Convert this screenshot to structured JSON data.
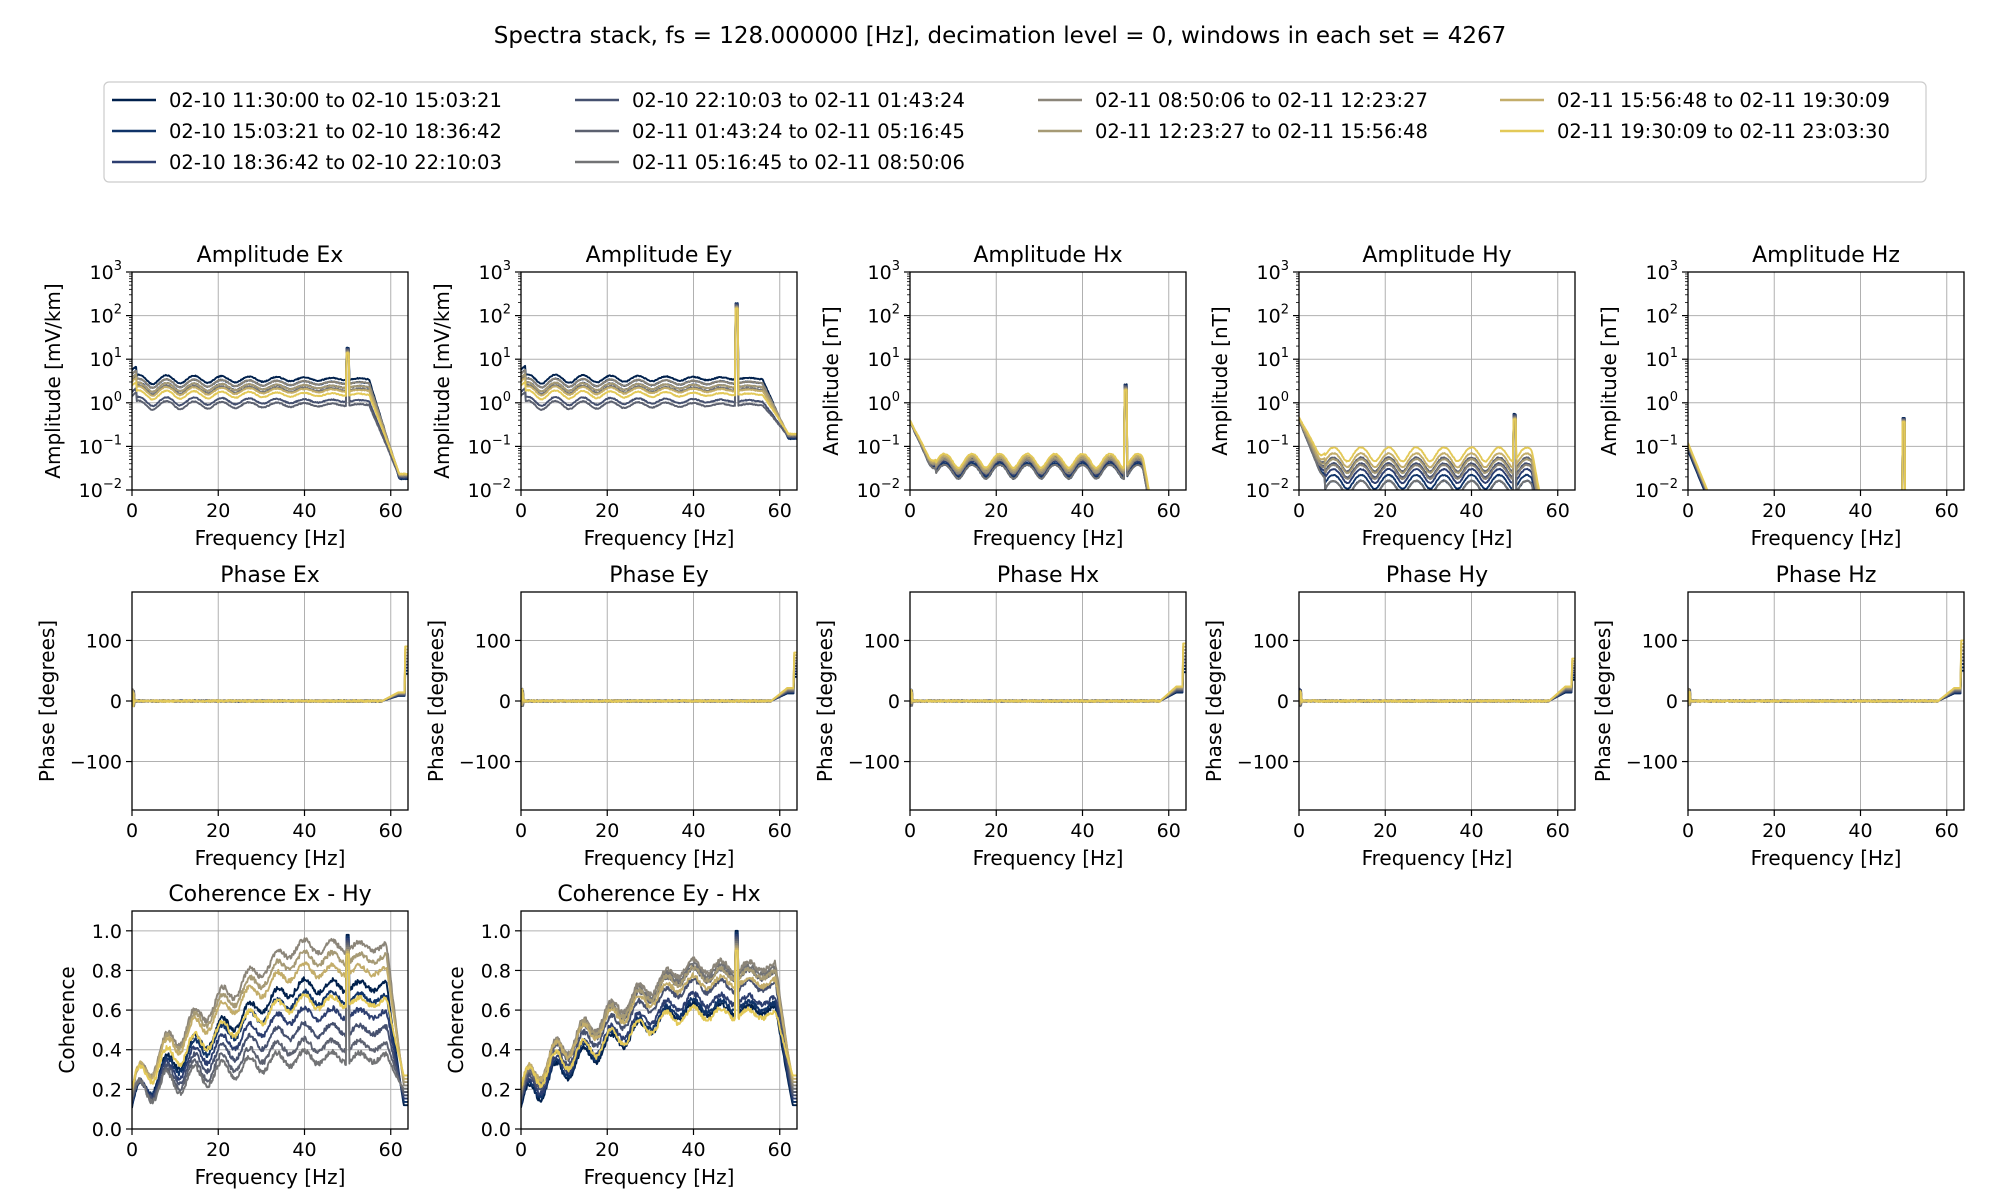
{
  "figure": {
    "title": "Spectra stack, fs = 128.000000 [Hz], decimation level =  0, windows in each set = 4267"
  },
  "legend": {
    "placement": "top, 4 columns",
    "entries": [
      {
        "label": "02-10 11:30:00 to 02-10 15:03:21",
        "color": "#00204c"
      },
      {
        "label": "02-10 15:03:21 to 02-10 18:36:42",
        "color": "#0f3368"
      },
      {
        "label": "02-10 18:36:42 to 02-10 22:10:03",
        "color": "#2c3e70"
      },
      {
        "label": "02-10 22:10:03 to 02-11 01:43:24",
        "color": "#45506f"
      },
      {
        "label": "02-11 01:43:24 to 02-11 05:16:45",
        "color": "#5c6170"
      },
      {
        "label": "02-11 05:16:45 to 02-11 08:50:06",
        "color": "#727375"
      },
      {
        "label": "02-11 08:50:06 to 02-11 12:23:27",
        "color": "#8b8579"
      },
      {
        "label": "02-11 12:23:27 to 02-11 15:56:48",
        "color": "#a69a75"
      },
      {
        "label": "02-11 15:56:48 to 02-11 19:30:09",
        "color": "#c3ad6a"
      },
      {
        "label": "02-11 19:30:09 to 02-11 23:03:30",
        "color": "#e3c958"
      }
    ]
  },
  "chart_data": [
    {
      "id": "amp_ex",
      "type": "line",
      "title": "Amplitude Ex",
      "xlabel": "Frequency [Hz]",
      "ylabel": "Amplitude [mV/km]",
      "xlim": [
        0,
        64
      ],
      "ylim": [
        0.01,
        1000
      ],
      "yscale": "log",
      "grid": true,
      "xticks": [
        0,
        20,
        40,
        60
      ],
      "yticks": [
        {
          "v": 0.01,
          "base": "10",
          "exp": "−2"
        },
        {
          "v": 0.1,
          "base": "10",
          "exp": "−1"
        },
        {
          "v": 1,
          "base": "10",
          "exp": "0"
        },
        {
          "v": 10,
          "base": "10",
          "exp": "1"
        },
        {
          "v": 100,
          "base": "10",
          "exp": "2"
        },
        {
          "v": 1000,
          "base": "10",
          "exp": "3"
        }
      ],
      "model": {
        "kind": "amp_e",
        "lo": 0.9,
        "hi": 3.5,
        "dropHz": 55,
        "floor": 0.018,
        "peakHz": 50,
        "peak": 18
      }
    },
    {
      "id": "amp_ey",
      "type": "line",
      "title": "Amplitude Ey",
      "xlabel": "Frequency [Hz]",
      "ylabel": "Amplitude [mV/km]",
      "xlim": [
        0,
        64
      ],
      "ylim": [
        0.01,
        1000
      ],
      "yscale": "log",
      "grid": true,
      "xticks": [
        0,
        20,
        40,
        60
      ],
      "yticks": [
        {
          "v": 0.01,
          "base": "10",
          "exp": "−2"
        },
        {
          "v": 0.1,
          "base": "10",
          "exp": "−1"
        },
        {
          "v": 1,
          "base": "10",
          "exp": "0"
        },
        {
          "v": 10,
          "base": "10",
          "exp": "1"
        },
        {
          "v": 100,
          "base": "10",
          "exp": "2"
        },
        {
          "v": 1000,
          "base": "10",
          "exp": "3"
        }
      ],
      "model": {
        "kind": "amp_e",
        "lo": 0.9,
        "hi": 3.6,
        "dropHz": 56,
        "floor": 0.15,
        "peakHz": 50,
        "peak": 190
      }
    },
    {
      "id": "amp_hx",
      "type": "line",
      "title": "Amplitude Hx",
      "xlabel": "Frequency [Hz]",
      "ylabel": "Amplitude [nT]",
      "xlim": [
        0,
        64
      ],
      "ylim": [
        0.01,
        1000
      ],
      "yscale": "log",
      "grid": true,
      "xticks": [
        0,
        20,
        40,
        60
      ],
      "yticks": [
        {
          "v": 0.01,
          "base": "10",
          "exp": "−2"
        },
        {
          "v": 0.1,
          "base": "10",
          "exp": "−1"
        },
        {
          "v": 1,
          "base": "10",
          "exp": "0"
        },
        {
          "v": 10,
          "base": "10",
          "exp": "1"
        },
        {
          "v": 100,
          "base": "10",
          "exp": "2"
        },
        {
          "v": 1000,
          "base": "10",
          "exp": "3"
        }
      ],
      "model": {
        "kind": "amp_h",
        "start": 0.35,
        "lo": 0.028,
        "hi": 0.05,
        "endHz": 58,
        "peakHz": 50,
        "peak": 2.6
      }
    },
    {
      "id": "amp_hy",
      "type": "line",
      "title": "Amplitude Hy",
      "xlabel": "Frequency [Hz]",
      "ylabel": "Amplitude [nT]",
      "xlim": [
        0,
        64
      ],
      "ylim": [
        0.01,
        1000
      ],
      "yscale": "log",
      "grid": true,
      "xticks": [
        0,
        20,
        40,
        60
      ],
      "yticks": [
        {
          "v": 0.01,
          "base": "10",
          "exp": "−2"
        },
        {
          "v": 0.1,
          "base": "10",
          "exp": "−1"
        },
        {
          "v": 1,
          "base": "10",
          "exp": "0"
        },
        {
          "v": 10,
          "base": "10",
          "exp": "1"
        },
        {
          "v": 100,
          "base": "10",
          "exp": "2"
        },
        {
          "v": 1000,
          "base": "10",
          "exp": "3"
        }
      ],
      "model": {
        "kind": "amp_h",
        "start": 0.4,
        "lo": 0.012,
        "hi": 0.07,
        "endHz": 58,
        "peakHz": 50,
        "peak": 0.55
      }
    },
    {
      "id": "amp_hz",
      "type": "line",
      "title": "Amplitude Hz",
      "xlabel": "Frequency [Hz]",
      "ylabel": "Amplitude [nT]",
      "xlim": [
        0,
        64
      ],
      "ylim": [
        0.01,
        1000
      ],
      "yscale": "log",
      "grid": true,
      "xticks": [
        0,
        20,
        40,
        60
      ],
      "yticks": [
        {
          "v": 0.01,
          "base": "10",
          "exp": "−2"
        },
        {
          "v": 0.1,
          "base": "10",
          "exp": "−1"
        },
        {
          "v": 1,
          "base": "10",
          "exp": "0"
        },
        {
          "v": 10,
          "base": "10",
          "exp": "1"
        },
        {
          "v": 100,
          "base": "10",
          "exp": "2"
        },
        {
          "v": 1000,
          "base": "10",
          "exp": "3"
        }
      ],
      "model": {
        "kind": "amp_hz",
        "start": 0.1,
        "peakHz": 50,
        "peak": 0.45
      }
    },
    {
      "id": "ph_ex",
      "type": "line",
      "title": "Phase Ex",
      "xlabel": "Frequency [Hz]",
      "ylabel": "Phase [degrees]",
      "xlim": [
        0,
        64
      ],
      "ylim": [
        -180,
        180
      ],
      "yscale": "linear",
      "grid": true,
      "xticks": [
        0,
        20,
        40,
        60
      ],
      "yticks": [
        {
          "v": 100,
          "label": "100"
        },
        {
          "v": 0,
          "label": "0"
        },
        {
          "v": -100,
          "label": "−100"
        }
      ],
      "model": {
        "kind": "phase",
        "rise": 12,
        "end": 90
      }
    },
    {
      "id": "ph_ey",
      "type": "line",
      "title": "Phase Ey",
      "xlabel": "Frequency [Hz]",
      "ylabel": "Phase [degrees]",
      "xlim": [
        0,
        64
      ],
      "ylim": [
        -180,
        180
      ],
      "yscale": "linear",
      "grid": true,
      "xticks": [
        0,
        20,
        40,
        60
      ],
      "yticks": [
        {
          "v": 100,
          "label": "100"
        },
        {
          "v": 0,
          "label": "0"
        },
        {
          "v": -100,
          "label": "−100"
        }
      ],
      "model": {
        "kind": "phase",
        "rise": 18,
        "end": 80
      }
    },
    {
      "id": "ph_hx",
      "type": "line",
      "title": "Phase Hx",
      "xlabel": "Frequency [Hz]",
      "ylabel": "Phase [degrees]",
      "xlim": [
        0,
        64
      ],
      "ylim": [
        -180,
        180
      ],
      "yscale": "linear",
      "grid": true,
      "xticks": [
        0,
        20,
        40,
        60
      ],
      "yticks": [
        {
          "v": 100,
          "label": "100"
        },
        {
          "v": 0,
          "label": "0"
        },
        {
          "v": -100,
          "label": "−100"
        }
      ],
      "model": {
        "kind": "phase",
        "rise": 20,
        "end": 95
      }
    },
    {
      "id": "ph_hy",
      "type": "line",
      "title": "Phase Hy",
      "xlabel": "Frequency [Hz]",
      "ylabel": "Phase [degrees]",
      "xlim": [
        0,
        64
      ],
      "ylim": [
        -180,
        180
      ],
      "yscale": "linear",
      "grid": true,
      "xticks": [
        0,
        20,
        40,
        60
      ],
      "yticks": [
        {
          "v": 100,
          "label": "100"
        },
        {
          "v": 0,
          "label": "0"
        },
        {
          "v": -100,
          "label": "−100"
        }
      ],
      "model": {
        "kind": "phase",
        "rise": 20,
        "end": 70
      }
    },
    {
      "id": "ph_hz",
      "type": "line",
      "title": "Phase Hz",
      "xlabel": "Frequency [Hz]",
      "ylabel": "Phase [degrees]",
      "xlim": [
        0,
        64
      ],
      "ylim": [
        -180,
        180
      ],
      "yscale": "linear",
      "grid": true,
      "xticks": [
        0,
        20,
        40,
        60
      ],
      "yticks": [
        {
          "v": 100,
          "label": "100"
        },
        {
          "v": 0,
          "label": "0"
        },
        {
          "v": -100,
          "label": "−100"
        }
      ],
      "model": {
        "kind": "phase",
        "rise": 18,
        "end": 100
      }
    },
    {
      "id": "coh_exhy",
      "type": "line",
      "title": "Coherence Ex - Hy",
      "xlabel": "Frequency [Hz]",
      "ylabel": "Coherence",
      "xlim": [
        0,
        64
      ],
      "ylim": [
        0,
        1.1
      ],
      "yscale": "linear",
      "grid": true,
      "xticks": [
        0,
        20,
        40,
        60
      ],
      "yticks": [
        {
          "v": 0,
          "label": "0.0"
        },
        {
          "v": 0.2,
          "label": "0.2"
        },
        {
          "v": 0.4,
          "label": "0.4"
        },
        {
          "v": 0.6,
          "label": "0.6"
        },
        {
          "v": 0.8,
          "label": "0.8"
        },
        {
          "v": 1.0,
          "label": "1.0"
        }
      ],
      "model": {
        "kind": "coh",
        "levels": [
          0.72,
          0.66,
          0.58,
          0.5,
          0.42,
          0.36,
          0.92,
          0.86,
          0.8,
          0.64
        ],
        "peakHz": 50,
        "peak": 0.98
      }
    },
    {
      "id": "coh_eyhx",
      "type": "line",
      "title": "Coherence Ey - Hx",
      "xlabel": "Frequency [Hz]",
      "ylabel": "Coherence",
      "xlim": [
        0,
        64
      ],
      "ylim": [
        0,
        1.1
      ],
      "yscale": "linear",
      "grid": true,
      "xticks": [
        0,
        20,
        40,
        60
      ],
      "yticks": [
        {
          "v": 0,
          "label": "0.0"
        },
        {
          "v": 0.2,
          "label": "0.2"
        },
        {
          "v": 0.4,
          "label": "0.4"
        },
        {
          "v": 0.6,
          "label": "0.6"
        },
        {
          "v": 0.8,
          "label": "0.8"
        },
        {
          "v": 1.0,
          "label": "1.0"
        }
      ],
      "model": {
        "kind": "coh",
        "levels": [
          0.6,
          0.62,
          0.65,
          0.72,
          0.78,
          0.8,
          0.82,
          0.78,
          0.74,
          0.58
        ],
        "peakHz": 50,
        "peak": 1.0
      }
    }
  ]
}
